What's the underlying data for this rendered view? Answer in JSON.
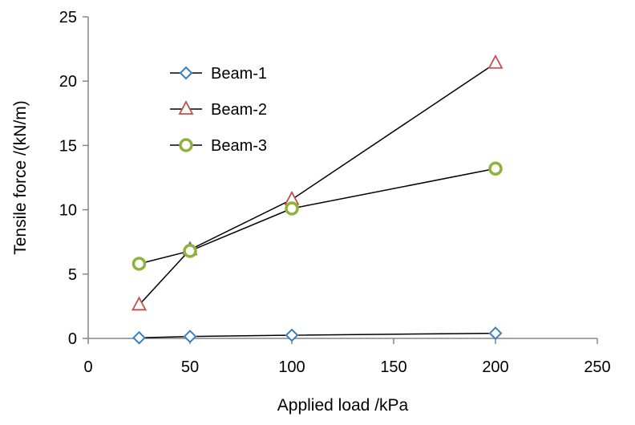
{
  "chart_data": {
    "type": "line",
    "title": "",
    "xlabel": "Applied load /kPa",
    "ylabel": "Tensile force /(kN/m)",
    "xlim": [
      0,
      250
    ],
    "ylim": [
      0,
      25
    ],
    "xticks": [
      "0",
      "50",
      "100",
      "150",
      "200",
      "250"
    ],
    "yticks": [
      "0",
      "5",
      "10",
      "15",
      "20",
      "25"
    ],
    "grid": false,
    "legend_position": "top-left",
    "x": [
      25,
      50,
      100,
      200
    ],
    "series": [
      {
        "name": "Beam-1",
        "marker": "diamond",
        "color": "#3C7FBF",
        "values": [
          0.05,
          0.15,
          0.25,
          0.4
        ]
      },
      {
        "name": "Beam-2",
        "marker": "triangle",
        "color": "#C0504D",
        "values": [
          2.6,
          6.9,
          10.8,
          21.4
        ]
      },
      {
        "name": "Beam-3",
        "marker": "circle",
        "color": "#8DB33C",
        "values": [
          5.8,
          6.8,
          10.1,
          13.2
        ]
      }
    ],
    "line_color": "#000000"
  }
}
